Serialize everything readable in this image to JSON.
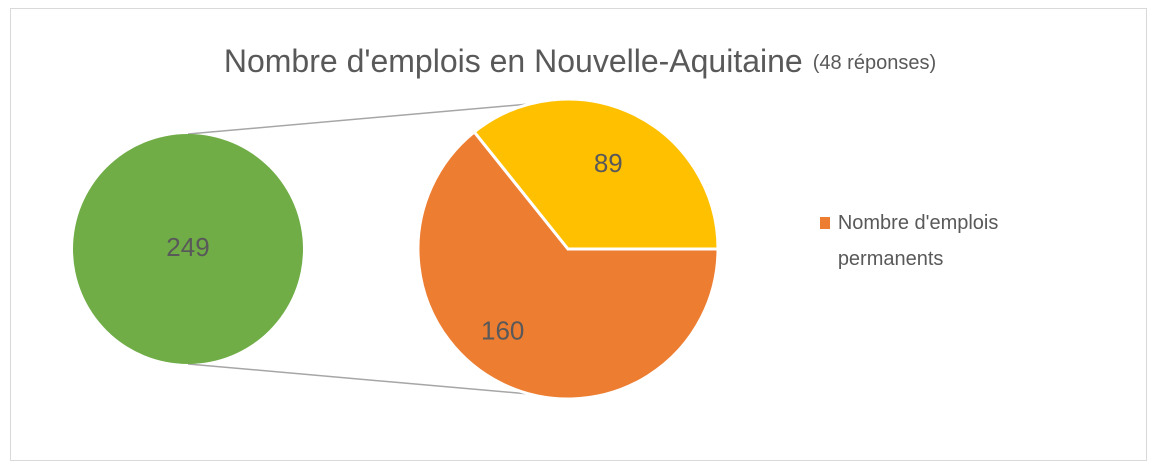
{
  "chart_data": {
    "type": "pie",
    "title": "Nombre d'emplois en Nouvelle-Aquitaine",
    "subtitle": "(48 réponses)",
    "pies": [
      {
        "values": [
          249
        ],
        "colors": [
          "#70ad47"
        ]
      },
      {
        "values": [
          160,
          89
        ],
        "colors": [
          "#ed7d31",
          "#ffc000"
        ]
      }
    ],
    "legend": [
      {
        "name": "Nombre d'emplois permanents",
        "color": "#ed7d31"
      }
    ],
    "legend_position": "right"
  }
}
